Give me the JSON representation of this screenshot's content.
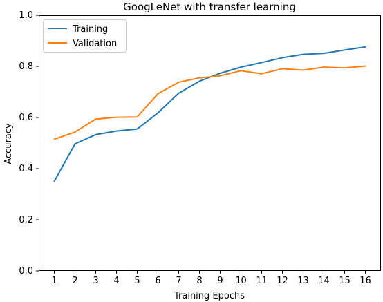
{
  "chart_data": {
    "type": "line",
    "title": "GoogLeNet with transfer learning",
    "xlabel": "Training Epochs",
    "ylabel": "Accuracy",
    "x": [
      1,
      2,
      3,
      4,
      5,
      6,
      7,
      8,
      9,
      10,
      11,
      12,
      13,
      14,
      15,
      16
    ],
    "xlim": [
      0.25,
      16.75
    ],
    "ylim": [
      0.0,
      1.0
    ],
    "yticks": [
      "0.0",
      "0.2",
      "0.4",
      "0.6",
      "0.8",
      "1.0"
    ],
    "xticks": [
      "1",
      "2",
      "3",
      "4",
      "5",
      "6",
      "7",
      "8",
      "9",
      "10",
      "11",
      "12",
      "13",
      "14",
      "15",
      "16"
    ],
    "legend_position": "top-left",
    "grid": false,
    "series": [
      {
        "name": "Training",
        "color": "#1f77b4",
        "values": [
          0.35,
          0.497,
          0.533,
          0.547,
          0.555,
          0.618,
          0.695,
          0.742,
          0.773,
          0.797,
          0.815,
          0.834,
          0.847,
          0.851,
          0.864,
          0.876
        ]
      },
      {
        "name": "Validation",
        "color": "#ff7f0e",
        "values": [
          0.515,
          0.543,
          0.594,
          0.601,
          0.602,
          0.693,
          0.738,
          0.755,
          0.763,
          0.783,
          0.771,
          0.791,
          0.785,
          0.797,
          0.794,
          0.801
        ]
      }
    ]
  }
}
